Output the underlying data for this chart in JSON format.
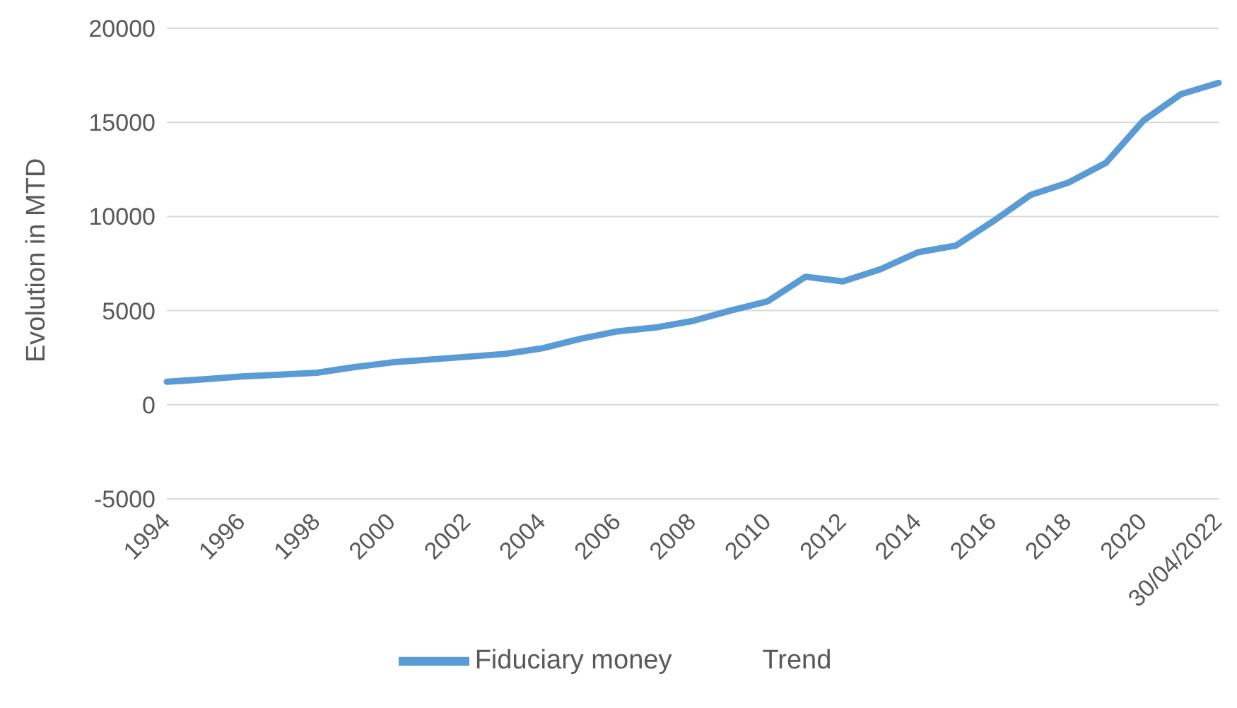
{
  "chart_data": {
    "type": "line",
    "ylabel": "Evolution in MTD",
    "categories": [
      "1994",
      null,
      "1996",
      null,
      "1998",
      null,
      "2000",
      null,
      "2002",
      null,
      "2004",
      null,
      "2006",
      null,
      "2008",
      null,
      "2010",
      null,
      "2012",
      null,
      "2014",
      null,
      "2016",
      null,
      "2018",
      null,
      "2020",
      null,
      "30/04/2022"
    ],
    "series": [
      {
        "name": "Fiduciary money",
        "color": "#5b9bd5",
        "values": [
          1220,
          1350,
          1500,
          1600,
          1700,
          2000,
          2250,
          2400,
          2550,
          2700,
          3000,
          3500,
          3900,
          4100,
          4450,
          5000,
          5500,
          6800,
          6550,
          7200,
          8100,
          8450,
          9750,
          11150,
          11800,
          12850,
          15100,
          16500,
          17100
        ]
      },
      {
        "name": "Trend",
        "values": [
          null,
          null,
          null,
          null,
          null,
          null,
          null,
          null,
          null,
          null,
          null,
          null,
          null,
          null,
          null,
          null,
          null,
          null,
          null,
          null,
          null,
          null,
          null,
          null,
          null,
          null,
          null,
          null,
          null
        ]
      }
    ],
    "ylim": [
      -5000,
      20000
    ],
    "yticks": [
      -5000,
      0,
      5000,
      10000,
      15000,
      20000
    ],
    "grid": "y",
    "legend": "bottom",
    "marker": "none",
    "line_style": "solid"
  }
}
